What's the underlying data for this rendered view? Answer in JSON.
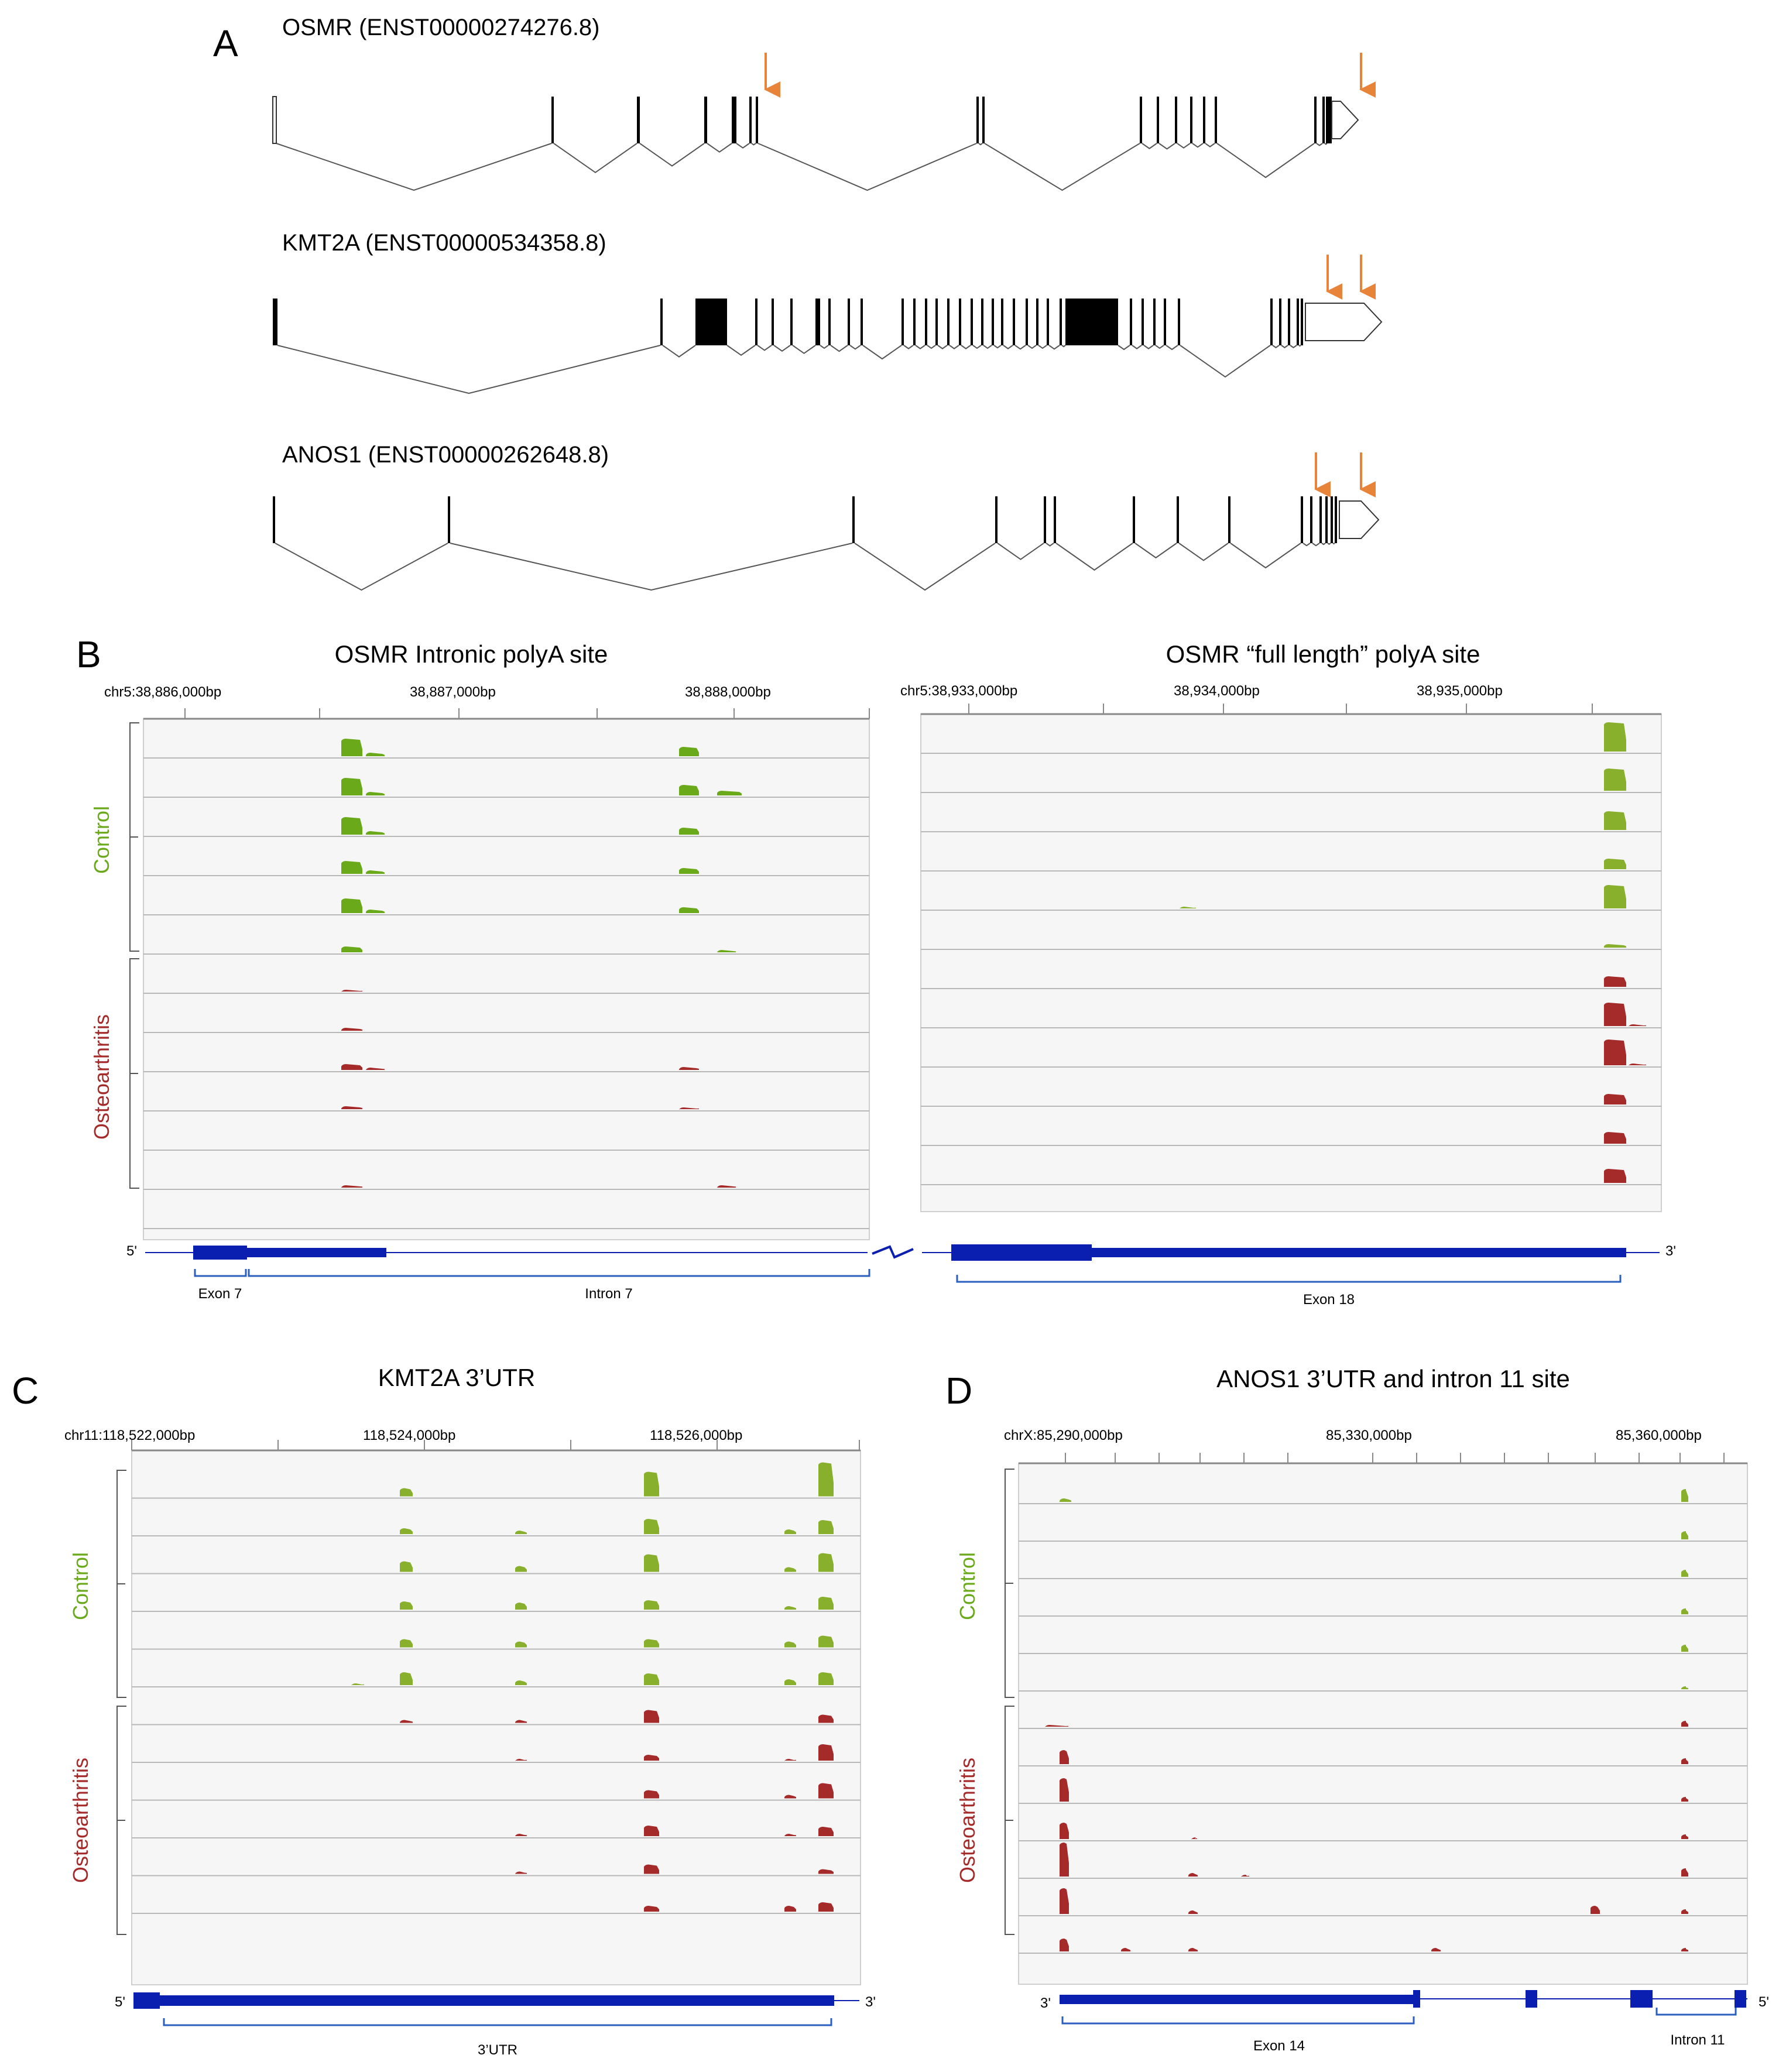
{
  "panel_a": {
    "letter": "A",
    "colors": {
      "arrow": "#e8833a",
      "exon": "#000000",
      "intron": "#555555"
    },
    "genes": [
      {
        "title": "OSMR (ENST00000274276.8)"
      },
      {
        "title": "KMT2A (ENST00000534358.8)"
      },
      {
        "title": "ANOS1 (ENST00000262648.8)"
      }
    ]
  },
  "panel_b": {
    "letter": "B",
    "left": {
      "title": "OSMR Intronic polyA site",
      "ticks": [
        "chr5:38,886,000bp",
        "38,887,000bp",
        "38,888,000bp"
      ],
      "features": [
        "Exon 7",
        "Intron 7"
      ],
      "end_label": "5'"
    },
    "right": {
      "title": "OSMR “full length” polyA site",
      "ticks": [
        "chr5:38,933,000bp",
        "38,934,000bp",
        "38,935,000bp"
      ],
      "features": [
        "Exon 18"
      ],
      "end_label": "3'"
    },
    "groups": [
      "Control",
      "Osteoarthritis"
    ]
  },
  "panel_c": {
    "letter": "C",
    "title": "KMT2A 3’UTR",
    "ticks": [
      "chr11:118,522,000bp",
      "118,524,000bp",
      "118,526,000bp"
    ],
    "feature": "3’UTR",
    "left_end": "5'",
    "right_end": "3'",
    "groups": [
      "Control",
      "Osteoarthritis"
    ]
  },
  "panel_d": {
    "letter": "D",
    "title": "ANOS1 3’UTR and intron 11 site",
    "ticks": [
      "chrX:85,290,000bp",
      "85,330,000bp",
      "85,360,000bp"
    ],
    "features": [
      "Exon 14",
      "Intron 11"
    ],
    "left_end": "3'",
    "right_end": "5'",
    "groups": [
      "Control",
      "Osteoarthritis"
    ]
  },
  "colors": {
    "control": "#6aaa1a",
    "control_alt": "#88b02c",
    "oa": "#a52a2a",
    "gene": "#0a1fb0",
    "bracket": "#2a5fbf",
    "track_bg": "#f6f6f6"
  }
}
